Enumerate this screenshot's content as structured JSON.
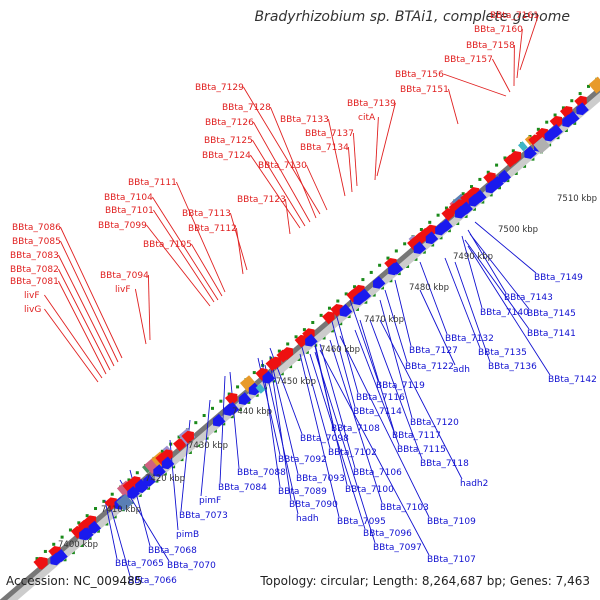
{
  "title": "Bradyrhizobium sp. BTAi1, complete genome",
  "footer": {
    "accession": "Accession: NC_009485",
    "summary": "Topology: circular; Length: 8,264,687 bp; Genes: 7,463"
  },
  "colors": {
    "forward_label": "#e02020",
    "reverse_label": "#1010d0",
    "backbone": "#777777",
    "dots": "#1a8a1a",
    "red_arrow": "#ee1111",
    "blue_arrow": "#1a1aee"
  },
  "kbp_ticks": [
    "7400 kbp",
    "7410 kbp",
    "7420 kbp",
    "7430 kbp",
    "7440 kbp",
    "7450 kbp",
    "7460 kbp",
    "7470 kbp",
    "7480 kbp",
    "7490 kbp",
    "7500 kbp",
    "7510 kbp"
  ],
  "forward_labels": [
    "BBta_7161",
    "BBta_7160",
    "BBta_7158",
    "BBta_7157",
    "BBta_7156",
    "BBta_7151",
    "BBta_7139",
    "citA",
    "BBta_7137",
    "BBta_7134",
    "BBta_7133",
    "BBta_7130",
    "BBta_7129",
    "BBta_7128",
    "BBta_7126",
    "BBta_7125",
    "BBta_7124",
    "BBta_7123",
    "BBta_7113",
    "BBta_7112",
    "BBta_7111",
    "BBta_7105",
    "BBta_7104",
    "BBta_7101",
    "BBta_7099",
    "BBta_7094",
    "livF",
    "BBta_7086",
    "BBta_7085",
    "BBta_7083",
    "BBta_7082",
    "BBta_7081",
    "livF",
    "livG"
  ],
  "reverse_labels": [
    "BBta_7149",
    "BBta_7143",
    "BBta_7140",
    "BBta_7145",
    "BBta_7141",
    "BBta_7132",
    "BBta_7135",
    "BBta_7142",
    "BBta_7127",
    "BBta_7136",
    "BBta_7122",
    "adh",
    "BBta_7119",
    "BBta_7116",
    "BBta_7114",
    "BBta_7108",
    "BBta_7120",
    "BBta_7117",
    "BBta_7098",
    "BBta_7102",
    "BBta_7115",
    "BBta_7092",
    "BBta_7118",
    "BBta_7106",
    "BBta_7088",
    "BBta_7093",
    "BBta_7084",
    "BBta_7089",
    "BBta_7100",
    "hadh2",
    "BBta_7090",
    "BBta_7103",
    "pimF",
    "hadh",
    "BBta_7109",
    "BBta_7073",
    "BBta_7095",
    "pimB",
    "BBta_7096",
    "BBta_7068",
    "BBta_7097",
    "BBta_7070",
    "BBta_7107",
    "BBta_7065",
    "BBta_7066"
  ]
}
